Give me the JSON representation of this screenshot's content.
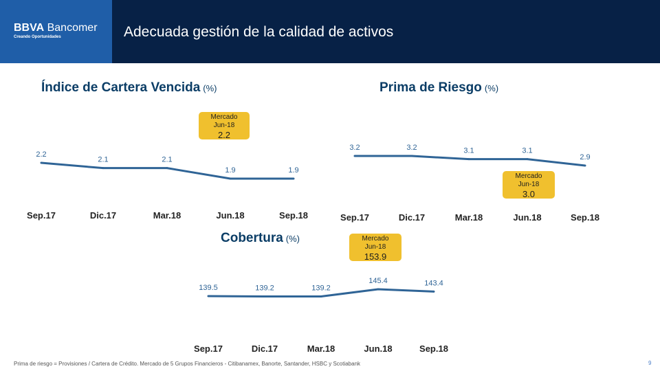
{
  "header": {
    "logo": {
      "brand": "BBVA",
      "name": "Bancomer",
      "tagline": "Creando Oportunidades"
    },
    "title": "Adecuada gestión de la calidad de activos",
    "background": "#072146",
    "logo_background": "#1f5ea8"
  },
  "colors": {
    "line": "#2f6496",
    "label": "#2f6496",
    "badge": "#f0c02e",
    "title": "#0b3d66"
  },
  "chart_data": [
    {
      "type": "line",
      "title": "Índice de Cartera Vencida",
      "unit": "(%)",
      "categories": [
        "Sep.17",
        "Dic.17",
        "Mar.18",
        "Jun.18",
        "Sep.18"
      ],
      "values": [
        2.2,
        2.1,
        2.1,
        1.9,
        1.9
      ],
      "value_labels": [
        "2.2",
        "2.1",
        "2.1",
        "1.9",
        "1.9"
      ],
      "annotation": {
        "line1": "Mercado",
        "line2": "Jun-18",
        "value": "2.2"
      }
    },
    {
      "type": "line",
      "title": "Prima de Riesgo",
      "unit": "(%)",
      "categories": [
        "Sep.17",
        "Dic.17",
        "Mar.18",
        "Jun.18",
        "Sep.18"
      ],
      "values": [
        3.2,
        3.2,
        3.1,
        3.1,
        2.9
      ],
      "value_labels": [
        "3.2",
        "3.2",
        "3.1",
        "3.1",
        "2.9"
      ],
      "annotation": {
        "line1": "Mercado",
        "line2": "Jun-18",
        "value": "3.0"
      }
    },
    {
      "type": "line",
      "title": "Cobertura",
      "unit": "(%)",
      "categories": [
        "Sep.17",
        "Dic.17",
        "Mar.18",
        "Jun.18",
        "Sep.18"
      ],
      "values": [
        139.5,
        139.2,
        139.2,
        145.4,
        143.4
      ],
      "value_labels": [
        "139.5",
        "139.2",
        "139.2",
        "145.4",
        "143.4"
      ],
      "annotation": {
        "line1": "Mercado",
        "line2": "Jun-18",
        "value": "153.9"
      }
    }
  ],
  "footnote": "Prima de riesgo = Provisiones / Cartera de Crédito.  Mercado de 5 Grupos Financieros - Citibanamex, Banorte, Santander, HSBC y Scotiabank",
  "page_number": "9"
}
